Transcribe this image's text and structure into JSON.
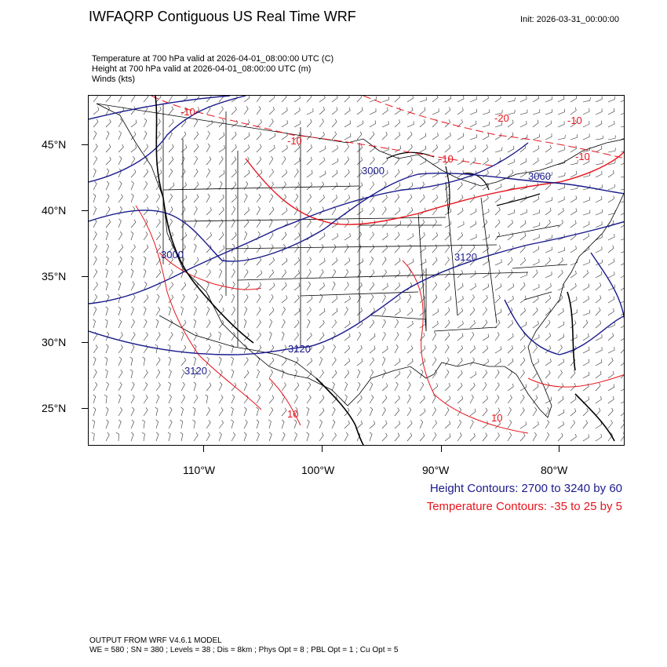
{
  "header": {
    "title": "IWFAQRP Contiguous US Real Time WRF",
    "init": "Init: 2026-03-31_00:00:00"
  },
  "fields": [
    "Temperature at 700 hPa valid at 2026-04-01_08:00:00 UTC   (C)",
    "Height at 700 hPa valid at 2026-04-01_08:00:00 UTC   (m)",
    "Winds   (kts)"
  ],
  "axes": {
    "lat_labels": [
      "45°N",
      "40°N",
      "35°N",
      "30°N",
      "25°N"
    ],
    "lon_labels": [
      "110°W",
      "100°W",
      "90°W",
      "80°W"
    ]
  },
  "contour_labels": {
    "height": [
      "3000",
      "3000",
      "3060",
      "3120",
      "3120",
      "3120"
    ],
    "temperature": [
      "-10",
      "-10",
      "-10",
      "-20",
      "-10",
      "-10",
      "10",
      "10"
    ]
  },
  "legend": {
    "height": "Height Contours: 2700 to 3240 by 60",
    "temperature": "Temperature Contours: -35 to 25 by 5"
  },
  "footer": {
    "line1": "OUTPUT FROM WRF V4.6.1 MODEL",
    "line2": "WE = 580 ; SN = 380 ; Levels = 38 ; Dis = 8km ; Phys Opt = 8 ; PBL Opt = 1 ; Cu Opt = 5"
  },
  "colors": {
    "height_contour": "#1a1a8c",
    "temperature_contour": "#e8141c",
    "boundaries": "#000000"
  }
}
